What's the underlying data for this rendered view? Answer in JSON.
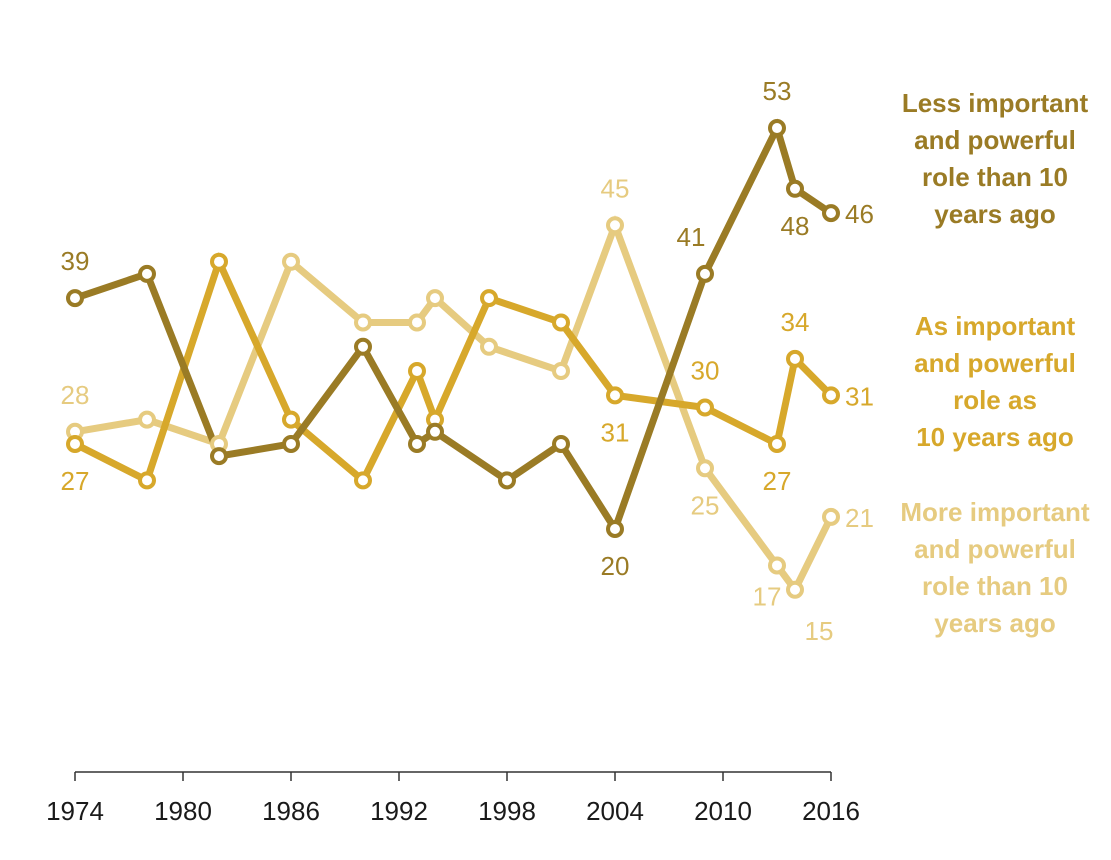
{
  "chart_data": {
    "type": "line",
    "x_ticks": [
      "1974",
      "1980",
      "1986",
      "1992",
      "1998",
      "2004",
      "2010",
      "2016"
    ],
    "xlim": [
      1974,
      2016
    ],
    "ylim": [
      0,
      60
    ],
    "grid": false,
    "legend_placement": "right, inline at line ends",
    "series": [
      {
        "name": "Less important and powerful role than 10 years ago",
        "label_lines": [
          "Less important",
          "and powerful",
          "role than 10",
          "years ago"
        ],
        "color": "#9a7b25",
        "x": [
          1974,
          1978,
          1982,
          1986,
          1990,
          1993,
          1994,
          1998,
          2001,
          2004,
          2009,
          2013,
          2014,
          2016
        ],
        "values": [
          39,
          41,
          26,
          27,
          35,
          27,
          28,
          24,
          27,
          20,
          41,
          53,
          48,
          46
        ],
        "labels": [
          {
            "text": "39",
            "index": 0,
            "anchor": "above"
          },
          {
            "text": "20",
            "index": 9,
            "anchor": "below"
          },
          {
            "text": "41",
            "index": 10,
            "anchor": "above-left"
          },
          {
            "text": "53",
            "index": 11,
            "anchor": "above"
          },
          {
            "text": "48",
            "index": 12,
            "anchor": "below"
          },
          {
            "text": "46",
            "index": 13,
            "anchor": "right"
          }
        ]
      },
      {
        "name": "As important and powerful role as 10 years ago",
        "label_lines": [
          "As important",
          "and powerful",
          "role as",
          "10 years ago"
        ],
        "color": "#d7a82b",
        "x": [
          1974,
          1978,
          1982,
          1986,
          1990,
          1993,
          1994,
          1997,
          2001,
          2004,
          2009,
          2013,
          2014,
          2016
        ],
        "values": [
          27,
          24,
          42,
          29,
          24,
          33,
          29,
          39,
          37,
          31,
          30,
          27,
          34,
          31
        ],
        "labels": [
          {
            "text": "27",
            "index": 0,
            "anchor": "below"
          },
          {
            "text": "31",
            "index": 9,
            "anchor": "below"
          },
          {
            "text": "30",
            "index": 10,
            "anchor": "above"
          },
          {
            "text": "27",
            "index": 11,
            "anchor": "below"
          },
          {
            "text": "34",
            "index": 12,
            "anchor": "above"
          },
          {
            "text": "31",
            "index": 13,
            "anchor": "right"
          }
        ]
      },
      {
        "name": "More important and powerful role than 10 years ago",
        "label_lines": [
          "More important",
          "and powerful",
          "role than 10",
          "years ago"
        ],
        "color": "#e6cb80",
        "x": [
          1974,
          1978,
          1982,
          1986,
          1990,
          1993,
          1994,
          1997,
          2001,
          2004,
          2009,
          2013,
          2014,
          2016
        ],
        "values": [
          28,
          29,
          27,
          42,
          37,
          37,
          39,
          35,
          33,
          45,
          25,
          17,
          15,
          21
        ],
        "labels": [
          {
            "text": "28",
            "index": 0,
            "anchor": "above"
          },
          {
            "text": "45",
            "index": 9,
            "anchor": "above"
          },
          {
            "text": "25",
            "index": 10,
            "anchor": "below"
          },
          {
            "text": "17",
            "index": 11,
            "anchor": "below-left"
          },
          {
            "text": "15",
            "index": 12,
            "anchor": "below-right"
          },
          {
            "text": "21",
            "index": 13,
            "anchor": "right"
          }
        ]
      }
    ]
  }
}
